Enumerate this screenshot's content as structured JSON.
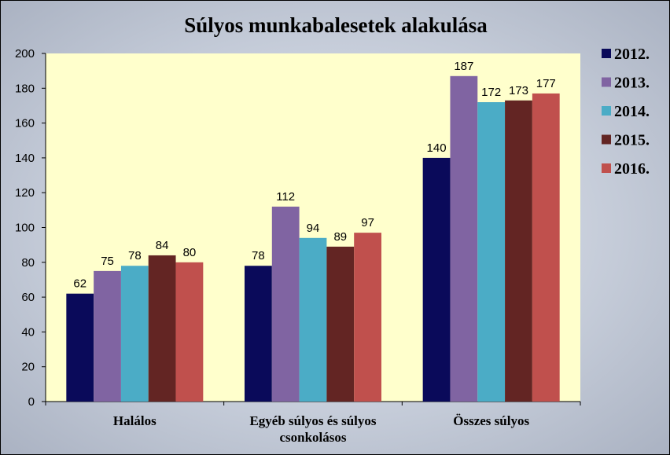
{
  "chart_data": {
    "type": "bar",
    "title": "Súlyos munkabalesetek  alakulása",
    "categories": [
      "Halálos",
      "Egyéb súlyos és súlyos csonkolásos",
      "Összes súlyos"
    ],
    "category_lines": [
      [
        "Halálos"
      ],
      [
        "Egyéb súlyos és súlyos",
        "csonkolásos"
      ],
      [
        "Összes súlyos"
      ]
    ],
    "series": [
      {
        "name": "2012.",
        "values": [
          62,
          78,
          140
        ],
        "color": "#0a0a5a"
      },
      {
        "name": "2013.",
        "values": [
          75,
          112,
          187
        ],
        "color": "#8064a2"
      },
      {
        "name": "2014.",
        "values": [
          78,
          94,
          172
        ],
        "color": "#4bacc6"
      },
      {
        "name": "2015.",
        "values": [
          84,
          89,
          173
        ],
        "color": "#632523"
      },
      {
        "name": "2016.",
        "values": [
          80,
          97,
          177
        ],
        "color": "#c0504d"
      }
    ],
    "ylim": [
      0,
      200
    ],
    "yticks": [
      0,
      20,
      40,
      60,
      80,
      100,
      120,
      140,
      160,
      180,
      200
    ],
    "grid": false,
    "legend_position": "right",
    "plot_background": "#ffffcc"
  }
}
